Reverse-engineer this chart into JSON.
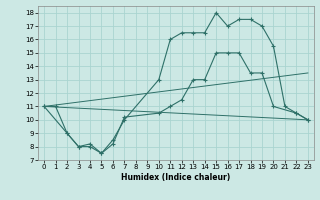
{
  "xlabel": "Humidex (Indice chaleur)",
  "bg_color": "#cce8e4",
  "grid_color": "#aad4d0",
  "line_color": "#2e7068",
  "xlim": [
    -0.5,
    23.5
  ],
  "ylim": [
    7,
    18.5
  ],
  "xticks": [
    0,
    1,
    2,
    3,
    4,
    5,
    6,
    7,
    8,
    9,
    10,
    11,
    12,
    13,
    14,
    15,
    16,
    17,
    18,
    19,
    20,
    21,
    22,
    23
  ],
  "yticks": [
    7,
    8,
    9,
    10,
    11,
    12,
    13,
    14,
    15,
    16,
    17,
    18
  ],
  "curve1_x": [
    0,
    1,
    2,
    3,
    4,
    5,
    6,
    7,
    10,
    11,
    12,
    13,
    14,
    15,
    16,
    17,
    18,
    19,
    20,
    21,
    22,
    23
  ],
  "curve1_y": [
    11,
    11,
    9,
    8,
    8,
    7.5,
    8.5,
    10,
    13,
    16,
    16.5,
    16.5,
    16.5,
    18,
    17,
    17.5,
    17.5,
    17,
    15.5,
    11,
    10.5,
    10
  ],
  "curve2_x": [
    0,
    2,
    3,
    4,
    5,
    6,
    7,
    10,
    11,
    12,
    13,
    14,
    15,
    16,
    17,
    18,
    19,
    20,
    22,
    23
  ],
  "curve2_y": [
    11,
    9,
    8,
    8.2,
    7.5,
    8.2,
    10.2,
    10.5,
    11,
    11.5,
    13,
    13,
    15,
    15,
    15,
    13.5,
    13.5,
    11,
    10.5,
    10
  ],
  "line3_x": [
    0,
    23
  ],
  "line3_y": [
    11,
    13.5
  ],
  "line4_x": [
    0,
    23
  ],
  "line4_y": [
    11,
    10
  ]
}
